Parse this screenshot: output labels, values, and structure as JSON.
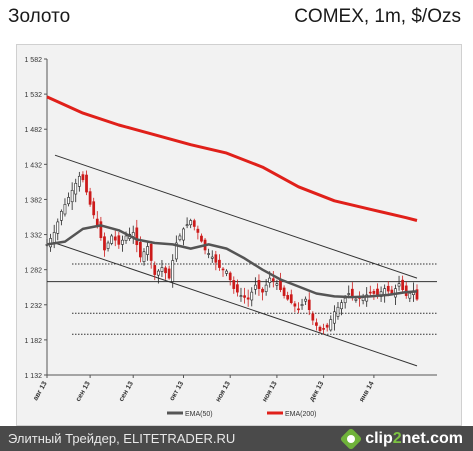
{
  "header": {
    "title_left": "Золото",
    "title_right": "COMEX, 1m, $/Ozs"
  },
  "footer": {
    "source": "Элитный Трейдер, ELITETRADER.RU",
    "logo_text_a": "clip",
    "logo_text_b": "2",
    "logo_text_c": "net.com"
  },
  "colors": {
    "ema50": "#555555",
    "ema200": "#e0201a",
    "price_up": "#222222",
    "price_down": "#cc1a1a",
    "channel": "#333333",
    "background": "#f2f2f2"
  },
  "chart_data": {
    "type": "line",
    "ylim": [
      1132,
      1582
    ],
    "y_ticks": [
      1132,
      1182,
      1232,
      1282,
      1332,
      1382,
      1432,
      1482,
      1532,
      1582
    ],
    "y_tick_labels": [
      "1 132",
      "1 182",
      "1 232",
      "1 282",
      "1 332",
      "1 382",
      "1 432",
      "1 482",
      "1 532",
      "1 582"
    ],
    "x_tick_labels": [
      "авг 13",
      "сен 13",
      "сен 13",
      "окт 13",
      "ноя 13",
      "ноя 13",
      "дек 13",
      "янв 14"
    ],
    "x_tick_positions": [
      0,
      12,
      24,
      38,
      51,
      64,
      77,
      91
    ],
    "n_bars": 104,
    "series": [
      {
        "name": "EMA(50)",
        "kind": "ema",
        "x": [
          0,
          5,
          10,
          15,
          20,
          25,
          30,
          35,
          40,
          45,
          50,
          55,
          60,
          65,
          70,
          75,
          80,
          85,
          90,
          95,
          100,
          103
        ],
        "values": [
          1318,
          1322,
          1340,
          1345,
          1338,
          1325,
          1320,
          1318,
          1312,
          1318,
          1312,
          1298,
          1282,
          1268,
          1258,
          1248,
          1244,
          1243,
          1244,
          1246,
          1250,
          1251
        ]
      },
      {
        "name": "EMA(200)",
        "kind": "ema",
        "x": [
          0,
          10,
          20,
          30,
          40,
          50,
          60,
          70,
          80,
          90,
          100,
          103
        ],
        "values": [
          1528,
          1505,
          1488,
          1474,
          1460,
          1448,
          1428,
          1400,
          1380,
          1368,
          1356,
          1352
        ]
      },
      {
        "name": "",
        "kind": "price",
        "x": [
          0,
          2,
          4,
          6,
          8,
          9,
          10,
          12,
          14,
          16,
          18,
          20,
          22,
          24,
          26,
          28,
          30,
          32,
          34,
          36,
          38,
          40,
          42,
          44,
          46,
          48,
          50,
          52,
          54,
          56,
          58,
          60,
          62,
          64,
          66,
          68,
          70,
          72,
          74,
          76,
          78,
          80,
          82,
          84,
          86,
          88,
          90,
          92,
          94,
          96,
          98,
          100,
          102,
          103
        ],
        "values": [
          1318,
          1335,
          1365,
          1385,
          1405,
          1415,
          1410,
          1375,
          1345,
          1310,
          1330,
          1318,
          1330,
          1335,
          1300,
          1315,
          1275,
          1285,
          1270,
          1320,
          1340,
          1352,
          1335,
          1310,
          1300,
          1285,
          1280,
          1255,
          1245,
          1240,
          1260,
          1250,
          1270,
          1262,
          1245,
          1235,
          1225,
          1240,
          1210,
          1195,
          1200,
          1222,
          1235,
          1248,
          1240,
          1242,
          1250,
          1246,
          1255,
          1248,
          1262,
          1245,
          1252,
          1240
        ]
      }
    ],
    "channel_lines": [
      {
        "x": [
          0,
          103
        ],
        "values": [
          1445,
          1270
        ]
      },
      {
        "x": [
          0,
          103
        ],
        "values": [
          1320,
          1145
        ]
      }
    ],
    "horizontal_levels": [
      {
        "value": 1290,
        "style": "dotted"
      },
      {
        "value": 1265,
        "style": "solid"
      },
      {
        "value": 1220,
        "style": "dotted"
      },
      {
        "value": 1190,
        "style": "dotted"
      }
    ],
    "legend": {
      "placement": "bottom",
      "entries": [
        "EMA(50)",
        "EMA(200)"
      ]
    },
    "grid": false
  }
}
